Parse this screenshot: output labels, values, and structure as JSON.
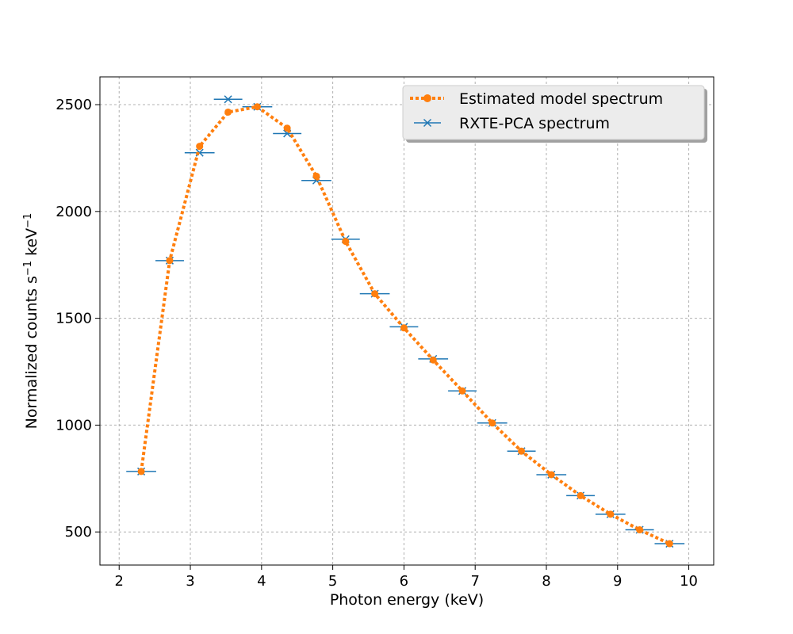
{
  "chart_data": {
    "type": "line",
    "title": "",
    "xlabel": "Photon energy (keV)",
    "ylabel": {
      "prefix": "Normalized counts s",
      "sup1": "−1",
      "middle": " keV",
      "sup2": "−1"
    },
    "xlim": [
      1.73,
      10.35
    ],
    "ylim": [
      345,
      2630
    ],
    "xticks": [
      2,
      3,
      4,
      5,
      6,
      7,
      8,
      9,
      10
    ],
    "yticks": [
      500,
      1000,
      1500,
      2000,
      2500
    ],
    "grid": true,
    "legend": "top-right",
    "series": [
      {
        "name": "Estimated model spectrum",
        "style": "dotted-line-with-circles",
        "color": "#ff7f0e",
        "x": [
          2.31,
          2.71,
          3.13,
          3.53,
          3.94,
          4.36,
          4.77,
          5.18,
          5.59,
          6.0,
          6.41,
          6.82,
          7.24,
          7.65,
          8.07,
          8.48,
          8.9,
          9.31,
          9.73
        ],
        "y": [
          783,
          1770,
          2305,
          2465,
          2490,
          2390,
          2165,
          1860,
          1615,
          1455,
          1305,
          1160,
          1010,
          878,
          768,
          670,
          583,
          510,
          445
        ]
      },
      {
        "name": "RXTE-PCA spectrum",
        "style": "x-markers-with-horizontal-errorbars",
        "color": "#1f77b4",
        "x": [
          2.31,
          2.71,
          3.13,
          3.53,
          3.94,
          4.36,
          4.77,
          5.18,
          5.59,
          6.0,
          6.41,
          6.82,
          7.24,
          7.65,
          8.07,
          8.48,
          8.9,
          9.31,
          9.73
        ],
        "xerr": [
          0.21,
          0.2,
          0.21,
          0.2,
          0.21,
          0.2,
          0.21,
          0.2,
          0.21,
          0.2,
          0.21,
          0.2,
          0.21,
          0.2,
          0.21,
          0.2,
          0.21,
          0.2,
          0.21
        ],
        "y": [
          783,
          1770,
          2275,
          2525,
          2490,
          2365,
          2145,
          1870,
          1615,
          1460,
          1310,
          1160,
          1010,
          878,
          768,
          670,
          583,
          510,
          445
        ]
      }
    ]
  }
}
